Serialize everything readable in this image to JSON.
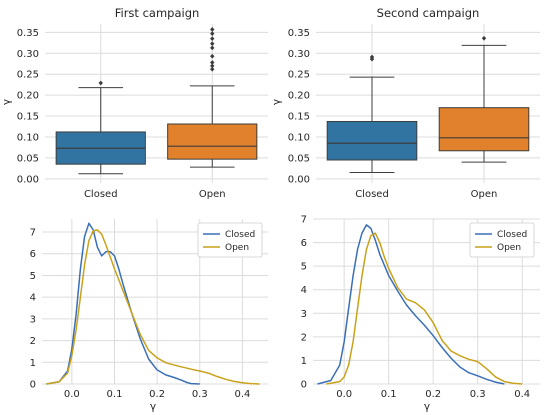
{
  "colors": {
    "closed_box": "#3274a1",
    "open_box": "#e1812c",
    "closed_line": "#3a6fb7",
    "open_line": "#c9a21a",
    "grid": "#dcdcdc",
    "axis_text": "#262626"
  },
  "chart_data": [
    {
      "type": "box",
      "title": "First campaign",
      "xlabel": "",
      "ylabel": "γ",
      "categories": [
        "Closed",
        "Open"
      ],
      "ylim": [
        -0.01,
        0.37
      ],
      "yticks": [
        0.0,
        0.05,
        0.1,
        0.15,
        0.2,
        0.25,
        0.3,
        0.35
      ],
      "ytick_labels": [
        "0.00",
        "0.05",
        "0.10",
        "0.15",
        "0.20",
        "0.25",
        "0.30",
        "0.35"
      ],
      "boxes": [
        {
          "name": "Closed",
          "whisker_low": 0.012,
          "q1": 0.035,
          "median": 0.073,
          "q3": 0.112,
          "whisker_high": 0.218,
          "outliers": [
            0.229
          ]
        },
        {
          "name": "Open",
          "whisker_low": 0.028,
          "q1": 0.047,
          "median": 0.078,
          "q3": 0.131,
          "whisker_high": 0.222,
          "outliers": [
            0.262,
            0.27,
            0.278,
            0.293,
            0.313,
            0.323,
            0.335,
            0.347,
            0.357
          ]
        }
      ],
      "grid": true
    },
    {
      "type": "box",
      "title": "Second campaign",
      "xlabel": "",
      "ylabel": "γ",
      "categories": [
        "Closed",
        "Open"
      ],
      "ylim": [
        -0.01,
        0.37
      ],
      "yticks": [
        0.0,
        0.05,
        0.1,
        0.15,
        0.2,
        0.25,
        0.3,
        0.35
      ],
      "ytick_labels": [
        "0.00",
        "0.05",
        "0.10",
        "0.15",
        "0.20",
        "0.25",
        "0.30",
        "0.35"
      ],
      "boxes": [
        {
          "name": "Closed",
          "whisker_low": 0.015,
          "q1": 0.045,
          "median": 0.085,
          "q3": 0.137,
          "whisker_high": 0.243,
          "outliers": [
            0.286,
            0.291
          ]
        },
        {
          "name": "Open",
          "whisker_low": 0.04,
          "q1": 0.067,
          "median": 0.098,
          "q3": 0.17,
          "whisker_high": 0.319,
          "outliers": [
            0.336
          ]
        }
      ],
      "grid": true
    },
    {
      "type": "line",
      "title": "",
      "xlabel": "γ",
      "ylabel": "",
      "xlim": [
        -0.07,
        0.46
      ],
      "ylim": [
        0,
        7.6
      ],
      "xticks": [
        0.0,
        0.1,
        0.2,
        0.3,
        0.4
      ],
      "xtick_labels": [
        "0.0",
        "0.1",
        "0.2",
        "0.3",
        "0.4"
      ],
      "yticks": [
        0,
        1,
        2,
        3,
        4,
        5,
        6,
        7
      ],
      "ytick_labels": [
        "0",
        "1",
        "2",
        "3",
        "4",
        "5",
        "6",
        "7"
      ],
      "legend": "top-right",
      "grid": true,
      "series": [
        {
          "name": "Closed",
          "x": [
            -0.06,
            -0.03,
            -0.01,
            0.0,
            0.01,
            0.02,
            0.03,
            0.04,
            0.05,
            0.06,
            0.07,
            0.08,
            0.09,
            0.1,
            0.11,
            0.12,
            0.14,
            0.16,
            0.18,
            0.2,
            0.22,
            0.24,
            0.26,
            0.27,
            0.28,
            0.3
          ],
          "y": [
            0.0,
            0.1,
            0.6,
            1.6,
            3.2,
            5.3,
            6.8,
            7.4,
            7.1,
            6.3,
            5.9,
            6.1,
            6.1,
            5.9,
            5.3,
            4.6,
            3.3,
            2.1,
            1.15,
            0.65,
            0.42,
            0.3,
            0.15,
            0.07,
            0.02,
            0.0
          ]
        },
        {
          "name": "Open",
          "x": [
            -0.06,
            -0.03,
            -0.01,
            0.0,
            0.01,
            0.02,
            0.03,
            0.04,
            0.05,
            0.06,
            0.07,
            0.08,
            0.1,
            0.12,
            0.14,
            0.16,
            0.18,
            0.2,
            0.22,
            0.25,
            0.28,
            0.3,
            0.32,
            0.34,
            0.36,
            0.38,
            0.4,
            0.42,
            0.44
          ],
          "y": [
            0.0,
            0.1,
            0.5,
            1.3,
            2.5,
            4.0,
            5.5,
            6.6,
            7.05,
            7.1,
            6.9,
            6.4,
            5.3,
            4.3,
            3.3,
            2.3,
            1.55,
            1.2,
            0.98,
            0.82,
            0.68,
            0.6,
            0.5,
            0.35,
            0.22,
            0.12,
            0.06,
            0.02,
            0.0
          ]
        }
      ]
    },
    {
      "type": "line",
      "title": "",
      "xlabel": "γ",
      "ylabel": "",
      "xlim": [
        -0.07,
        0.44
      ],
      "ylim": [
        0,
        7.0
      ],
      "xticks": [
        0.0,
        0.1,
        0.2,
        0.3,
        0.4
      ],
      "xtick_labels": [
        "0.0",
        "0.1",
        "0.2",
        "0.3",
        "0.4"
      ],
      "yticks": [
        0,
        1,
        2,
        3,
        4,
        5,
        6,
        7
      ],
      "ytick_labels": [
        "0",
        "1",
        "2",
        "3",
        "4",
        "5",
        "6",
        "7"
      ],
      "legend": "top-right",
      "grid": true,
      "series": [
        {
          "name": "Closed",
          "x": [
            -0.06,
            -0.03,
            -0.01,
            0.0,
            0.01,
            0.02,
            0.03,
            0.04,
            0.05,
            0.06,
            0.07,
            0.08,
            0.1,
            0.12,
            0.14,
            0.16,
            0.18,
            0.2,
            0.22,
            0.24,
            0.26,
            0.28,
            0.3,
            0.32,
            0.34,
            0.36
          ],
          "y": [
            0.0,
            0.15,
            0.8,
            1.8,
            3.2,
            4.6,
            5.7,
            6.4,
            6.75,
            6.6,
            6.1,
            5.5,
            4.6,
            3.95,
            3.35,
            2.9,
            2.5,
            2.05,
            1.55,
            1.1,
            0.72,
            0.48,
            0.35,
            0.2,
            0.08,
            0.0
          ]
        },
        {
          "name": "Open",
          "x": [
            -0.04,
            -0.01,
            0.0,
            0.01,
            0.02,
            0.03,
            0.04,
            0.05,
            0.06,
            0.07,
            0.08,
            0.09,
            0.1,
            0.12,
            0.14,
            0.16,
            0.18,
            0.2,
            0.22,
            0.24,
            0.26,
            0.28,
            0.3,
            0.32,
            0.34,
            0.36,
            0.38,
            0.4
          ],
          "y": [
            0.0,
            0.1,
            0.3,
            0.8,
            1.8,
            3.2,
            4.6,
            5.7,
            6.3,
            6.4,
            6.0,
            5.4,
            4.9,
            4.1,
            3.6,
            3.45,
            3.15,
            2.6,
            1.85,
            1.4,
            1.2,
            1.05,
            0.95,
            0.65,
            0.3,
            0.1,
            0.03,
            0.0
          ]
        }
      ]
    }
  ]
}
